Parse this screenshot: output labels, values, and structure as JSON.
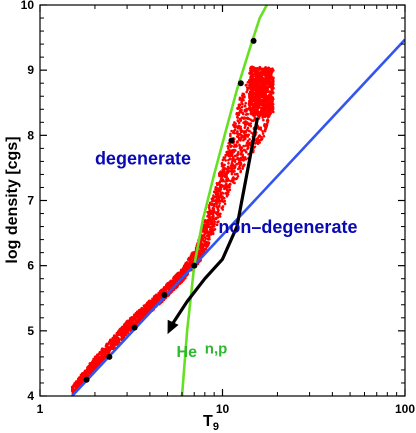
{
  "chart_data": {
    "type": "scatter",
    "title": "",
    "xlabel": "T",
    "xlabel_sub": "9",
    "ylabel": "log density [cgs]",
    "xscale": "log",
    "xlim": [
      1,
      100
    ],
    "ylim": [
      4,
      10
    ],
    "xticks": [
      {
        "value": 1,
        "label": "1"
      },
      {
        "value": 10,
        "label": "10"
      },
      {
        "value": 100,
        "label": "100"
      }
    ],
    "yticks": [
      {
        "value": 4,
        "label": "4"
      },
      {
        "value": 5,
        "label": "5"
      },
      {
        "value": 6,
        "label": "6"
      },
      {
        "value": 7,
        "label": "7"
      },
      {
        "value": 8,
        "label": "8"
      },
      {
        "value": 9,
        "label": "9"
      },
      {
        "value": 10,
        "label": "10"
      }
    ],
    "grid": false,
    "colors": {
      "scatter": "#ff0000",
      "degeneracy_line": "#3355ee",
      "np_he_line": "#66e022",
      "markers": "#000000",
      "arrow": "#000000",
      "text_blue": "#0a0ab4",
      "text_green": "#2eb82e"
    },
    "lines": [
      {
        "label_key": "degeneracy",
        "color": "#3355ee",
        "points": [
          [
            1.5,
            4.0
          ],
          [
            100,
            9.47
          ]
        ]
      },
      {
        "label_key": "np_he",
        "color": "#66e022",
        "points": [
          [
            6.0,
            4.0
          ],
          [
            6.4,
            5.0
          ],
          [
            7.0,
            6.0
          ],
          [
            7.8,
            6.7
          ],
          [
            9.0,
            7.4
          ],
          [
            10.5,
            8.1
          ],
          [
            12.0,
            8.7
          ],
          [
            14.0,
            9.3
          ],
          [
            16.0,
            9.8
          ],
          [
            17.5,
            10.0
          ]
        ]
      }
    ],
    "scatter_band": {
      "lower": [
        [
          1.5,
          4.0
        ],
        [
          2.0,
          4.4
        ],
        [
          3.0,
          4.95
        ],
        [
          4.5,
          5.4
        ],
        [
          6.0,
          5.75
        ],
        [
          7.5,
          6.05
        ],
        [
          9.0,
          6.5
        ],
        [
          11.0,
          7.15
        ],
        [
          14.0,
          7.65
        ],
        [
          17.0,
          8.0
        ],
        [
          19.0,
          8.5
        ],
        [
          19.0,
          9.0
        ]
      ],
      "upper": [
        [
          1.5,
          4.15
        ],
        [
          2.0,
          4.6
        ],
        [
          3.0,
          5.15
        ],
        [
          4.5,
          5.6
        ],
        [
          6.0,
          5.95
        ],
        [
          7.2,
          6.3
        ],
        [
          8.0,
          6.7
        ],
        [
          9.5,
          7.4
        ],
        [
          11.0,
          8.0
        ],
        [
          12.5,
          8.6
        ],
        [
          14.5,
          8.95
        ],
        [
          19.0,
          9.0
        ]
      ]
    },
    "markers": [
      [
        1.8,
        4.25
      ],
      [
        2.4,
        4.6
      ],
      [
        3.3,
        5.05
      ],
      [
        4.8,
        5.55
      ],
      [
        7.0,
        6.0
      ],
      [
        11.2,
        7.92
      ],
      [
        12.6,
        8.8
      ],
      [
        14.8,
        9.45
      ]
    ],
    "path": {
      "points": [
        [
          15.5,
          8.25
        ],
        [
          13.8,
          7.5
        ],
        [
          12.0,
          6.6
        ],
        [
          10.0,
          6.1
        ],
        [
          8.0,
          5.8
        ],
        [
          6.4,
          5.45
        ],
        [
          5.3,
          5.1
        ]
      ],
      "arrow_head": [
        5.0,
        4.95
      ]
    },
    "annotations": [
      {
        "key": "degenerate",
        "text": "degenerate",
        "x": 2.0,
        "y": 7.55,
        "color": "#0a0ab4"
      },
      {
        "key": "non_degenerate",
        "text": "non–degenerate",
        "x": 9.5,
        "y": 6.5,
        "color": "#0a0ab4"
      },
      {
        "key": "he",
        "text": "He",
        "x": 5.6,
        "y": 4.6,
        "color": "#2eb82e"
      },
      {
        "key": "np",
        "text": "n,p",
        "x": 8.0,
        "y": 4.65,
        "color": "#2eb82e"
      }
    ]
  }
}
